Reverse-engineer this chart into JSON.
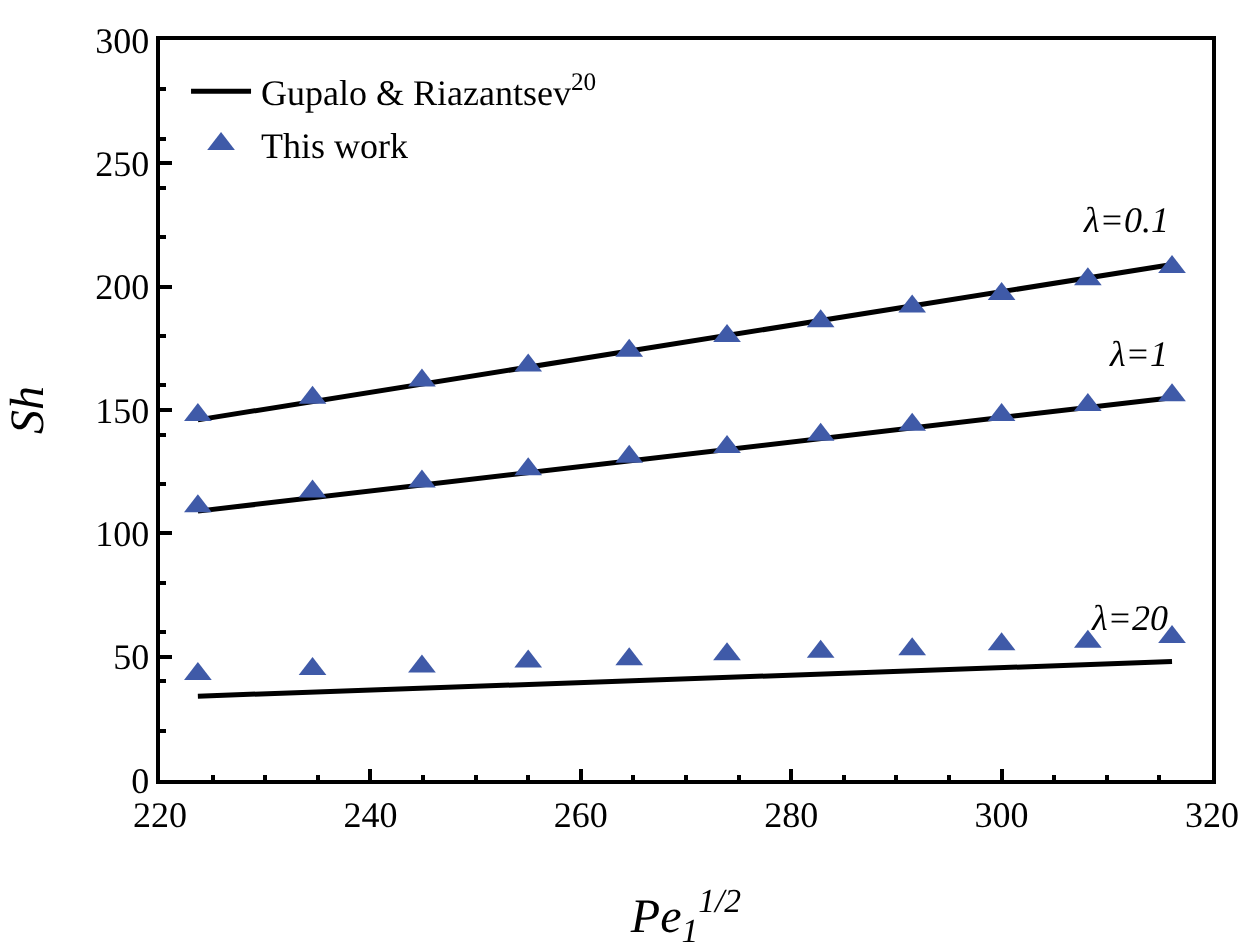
{
  "chart_data": {
    "type": "line",
    "xlabel": "Pe$_{1}$$^{1/2}$",
    "ylabel": "Sh",
    "xlim": [
      220,
      320
    ],
    "xticks": [
      220,
      240,
      260,
      280,
      300,
      320
    ],
    "ylim": [
      0,
      300
    ],
    "yticks": [
      0,
      50,
      100,
      150,
      200,
      250,
      300
    ],
    "grid": false,
    "legend": "top left",
    "series": [
      {
        "name": "Gupalo & Riazantsev$^{20}$",
        "color": "#000000",
        "line_style": "solid",
        "marker": "none",
        "x": [
          223.6,
          316.2
        ],
        "values": [
          146,
          209
        ]
      },
      {
        "color": "#000000",
        "line_style": "solid",
        "marker": "none",
        "x": [
          223.6,
          316.2
        ],
        "values": [
          109,
          155
        ]
      },
      {
        "color": "#000000",
        "line_style": "solid",
        "marker": "none",
        "x": [
          223.6,
          316.2
        ],
        "values": [
          34,
          48
        ]
      },
      {
        "name": "This work",
        "type": "scatter",
        "color": "#3f5aa8",
        "marker": "triangle",
        "x": [
          223.6,
          234.5,
          244.9,
          255.0,
          264.6,
          273.9,
          282.8,
          291.5,
          300.0,
          308.2,
          316.2
        ],
        "values": [
          148,
          155,
          162,
          168,
          174,
          180,
          186,
          192,
          197,
          203,
          208
        ]
      },
      {
        "type": "scatter",
        "color": "#3f5aa8",
        "marker": "triangle",
        "x": [
          223.6,
          234.5,
          244.9,
          255.0,
          264.6,
          273.9,
          282.8,
          291.5,
          300.0,
          308.2,
          316.2
        ],
        "values": [
          111,
          117,
          121,
          126,
          131,
          135,
          140,
          144,
          148,
          152,
          156
        ]
      },
      {
        "type": "scatter",
        "color": "#3f5aa8",
        "marker": "triangle",
        "x": [
          223.6,
          234.5,
          244.9,
          255.0,
          264.6,
          273.9,
          282.8,
          291.5,
          300.0,
          308.2,
          316.2
        ],
        "values": [
          43,
          45,
          46,
          48,
          49,
          51,
          52,
          53,
          55,
          56,
          58
        ]
      }
    ],
    "annotations": [
      "λ=0.1",
      "λ=1",
      "λ=20"
    ]
  }
}
